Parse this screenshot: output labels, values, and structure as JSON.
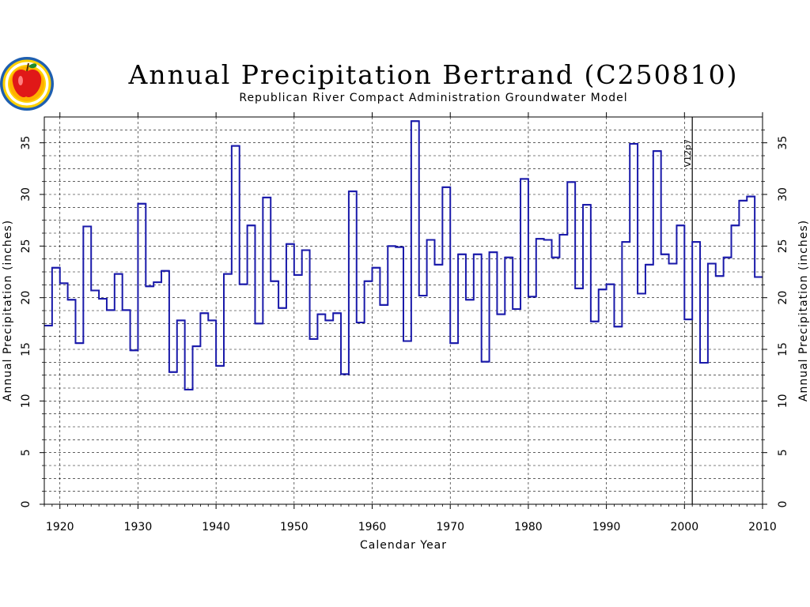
{
  "chart_data": {
    "type": "line",
    "step": true,
    "title": "Annual Precipitation Bertrand (C250810)",
    "subtitle": "Republican River Compact Administration Groundwater Model",
    "xlabel": "Calendar Year",
    "ylabel": "Annual Precipitation (inches)",
    "xlim": [
      1918,
      2010
    ],
    "ylim": [
      0,
      37.5
    ],
    "x_ticks": [
      "1920",
      "1930",
      "1940",
      "1950",
      "1960",
      "1970",
      "1980",
      "1990",
      "2000",
      "2010"
    ],
    "y_ticks": [
      "0",
      "5",
      "10",
      "15",
      "20",
      "25",
      "30",
      "35"
    ],
    "grid": true,
    "logo": "state-seal-apple",
    "colors": {
      "line": "#1a1aaa",
      "grid": "#000000"
    },
    "annotations": [
      {
        "label": "V12p7",
        "x": 2001
      }
    ],
    "series": [
      {
        "x": [
          1918,
          1919,
          1920,
          1921,
          1922,
          1923,
          1924,
          1925,
          1926,
          1927,
          1928,
          1929,
          1930,
          1931,
          1932,
          1933,
          1934,
          1935,
          1936,
          1937,
          1938,
          1939,
          1940,
          1941,
          1942,
          1943,
          1944,
          1945,
          1946,
          1947,
          1948,
          1949,
          1950,
          1951,
          1952,
          1953,
          1954,
          1955,
          1956,
          1957,
          1958,
          1959,
          1960,
          1961,
          1962,
          1963,
          1964,
          1965,
          1966,
          1967,
          1968,
          1969,
          1970,
          1971,
          1972,
          1973,
          1974,
          1975,
          1976,
          1977,
          1978,
          1979,
          1980,
          1981,
          1982,
          1983,
          1984,
          1985,
          1986,
          1987,
          1988,
          1989,
          1990,
          1991,
          1992,
          1993,
          1994,
          1995,
          1996,
          1997,
          1998,
          1999,
          2000,
          2001,
          2002,
          2003,
          2004,
          2005,
          2006,
          2007,
          2008,
          2009
        ],
        "values": [
          17.3,
          22.9,
          21.4,
          19.8,
          15.6,
          26.9,
          20.7,
          19.9,
          18.8,
          22.3,
          18.8,
          14.9,
          29.1,
          21.1,
          21.5,
          22.6,
          12.8,
          17.8,
          11.1,
          15.3,
          18.5,
          17.8,
          13.4,
          22.3,
          34.7,
          21.3,
          27.0,
          17.5,
          29.7,
          21.6,
          19.0,
          25.2,
          22.2,
          24.6,
          16.0,
          18.4,
          17.8,
          18.5,
          12.6,
          30.3,
          17.6,
          21.6,
          22.9,
          19.3,
          25.0,
          24.9,
          15.8,
          37.1,
          20.2,
          25.6,
          23.2,
          30.7,
          15.6,
          24.2,
          19.8,
          24.2,
          13.8,
          24.4,
          18.4,
          23.9,
          18.9,
          31.5,
          20.1,
          25.7,
          25.6,
          23.9,
          26.1,
          31.2,
          20.9,
          29.0,
          17.7,
          20.8,
          21.3,
          17.2,
          25.4,
          34.9,
          20.4,
          23.2,
          34.2,
          24.2,
          23.3,
          27.0,
          17.9,
          25.4,
          13.7,
          23.3,
          22.1,
          23.9,
          27.0,
          29.4,
          29.8,
          22.0
        ]
      }
    ]
  }
}
